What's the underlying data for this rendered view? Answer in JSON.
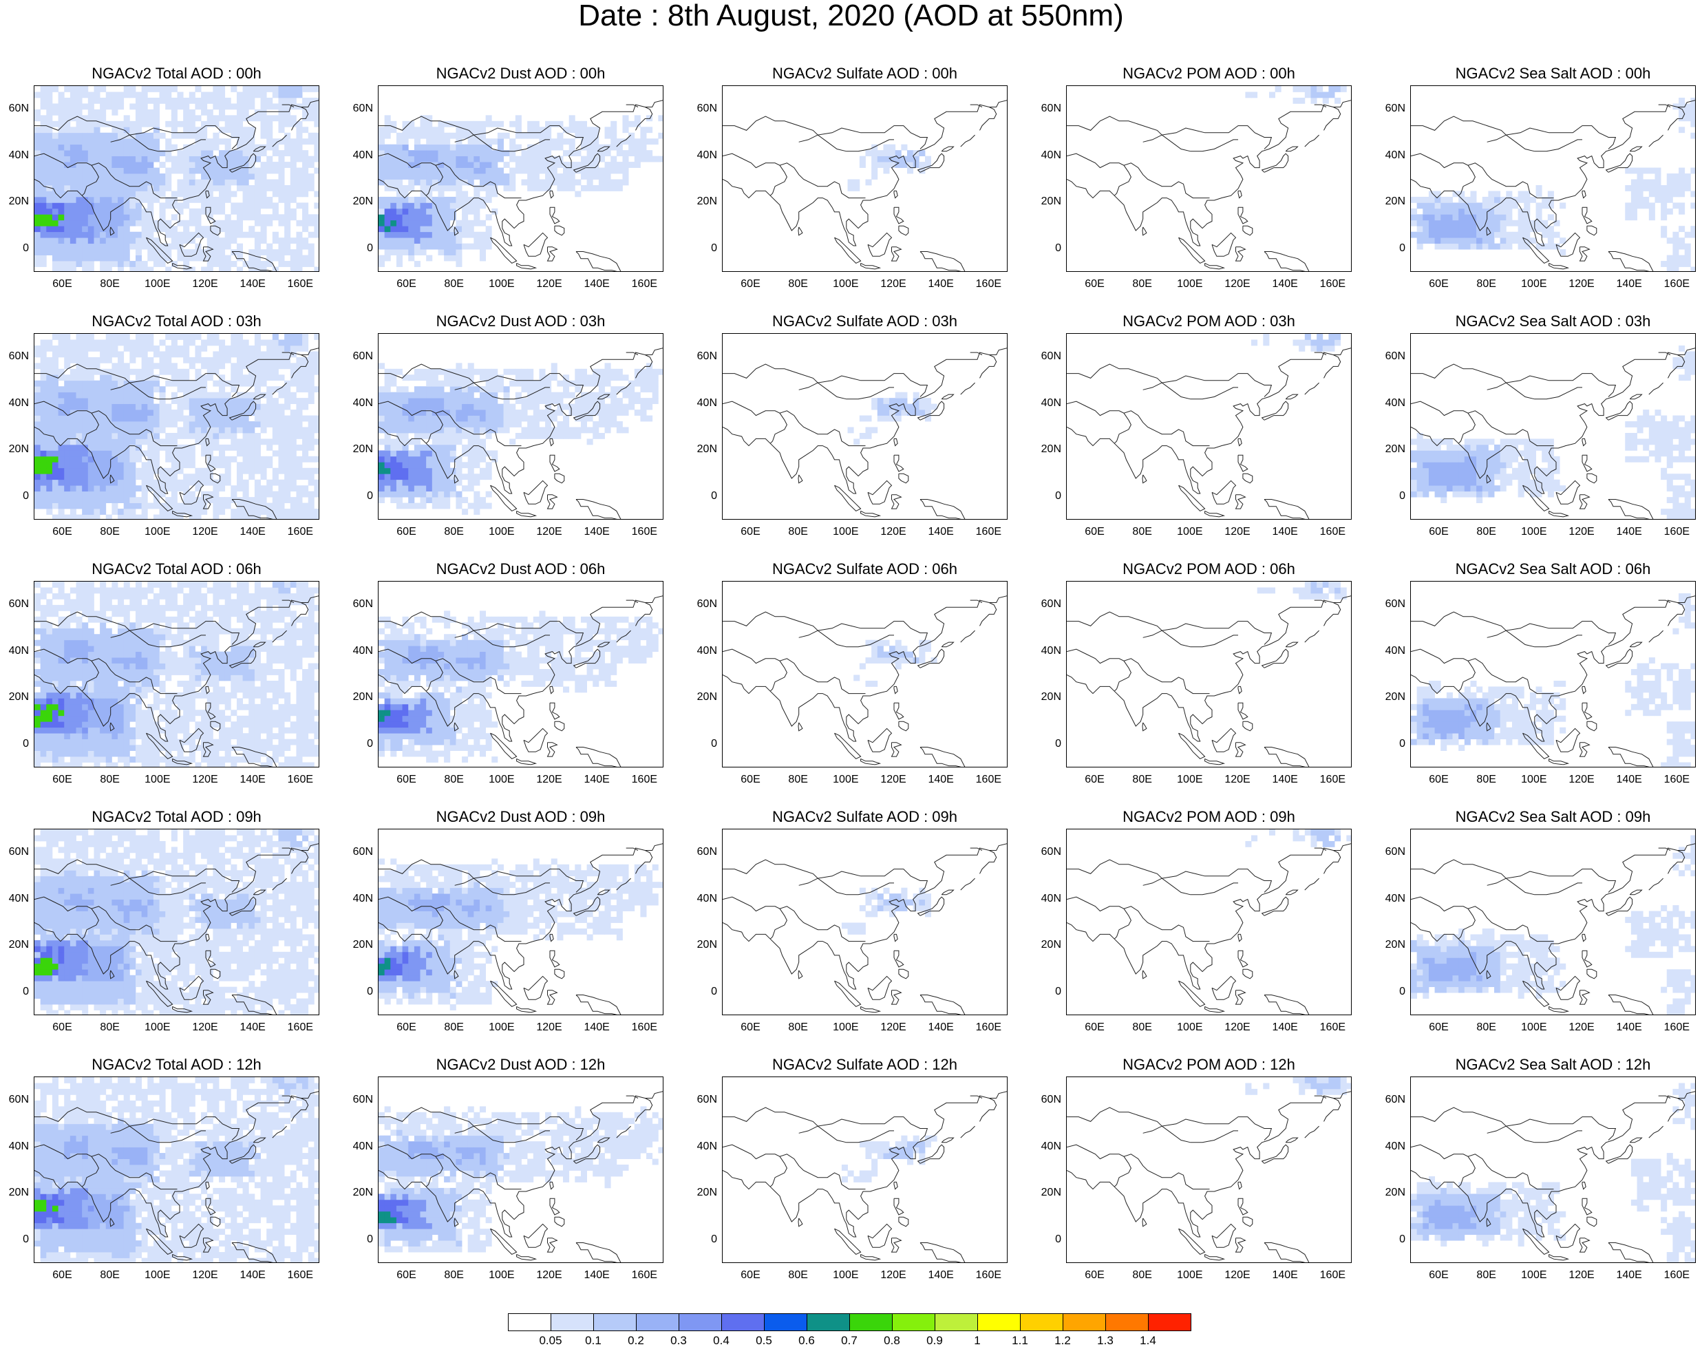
{
  "title": "Date : 8th August, 2020 (AOD at 550nm)",
  "panels": [
    {
      "title": "NGACv2 Total AOD : 00h",
      "field": "total"
    },
    {
      "title": "NGACv2 Dust AOD : 00h",
      "field": "dust"
    },
    {
      "title": "NGACv2 Sulfate AOD : 00h",
      "field": "sulfate"
    },
    {
      "title": "NGACv2 POM AOD : 00h",
      "field": "pom"
    },
    {
      "title": "NGACv2 Sea Salt AOD : 00h",
      "field": "seasalt"
    },
    {
      "title": "NGACv2 Total AOD : 03h",
      "field": "total"
    },
    {
      "title": "NGACv2 Dust AOD : 03h",
      "field": "dust"
    },
    {
      "title": "NGACv2 Sulfate AOD : 03h",
      "field": "sulfate"
    },
    {
      "title": "NGACv2 POM AOD : 03h",
      "field": "pom"
    },
    {
      "title": "NGACv2 Sea Salt AOD : 03h",
      "field": "seasalt"
    },
    {
      "title": "NGACv2 Total AOD : 06h",
      "field": "total"
    },
    {
      "title": "NGACv2 Dust AOD : 06h",
      "field": "dust"
    },
    {
      "title": "NGACv2 Sulfate AOD : 06h",
      "field": "sulfate"
    },
    {
      "title": "NGACv2 POM AOD : 06h",
      "field": "pom"
    },
    {
      "title": "NGACv2 Sea Salt AOD : 06h",
      "field": "seasalt"
    },
    {
      "title": "NGACv2 Total AOD : 09h",
      "field": "total"
    },
    {
      "title": "NGACv2 Dust AOD : 09h",
      "field": "dust"
    },
    {
      "title": "NGACv2 Sulfate AOD : 09h",
      "field": "sulfate"
    },
    {
      "title": "NGACv2 POM AOD : 09h",
      "field": "pom"
    },
    {
      "title": "NGACv2 Sea Salt  AOD : 09h",
      "field": "seasalt"
    },
    {
      "title": "NGACv2 Total AOD  : 12h",
      "field": "total"
    },
    {
      "title": "NGACv2 Dust AOD : 12h",
      "field": "dust"
    },
    {
      "title": "NGACv2 Sulfate AOD : 12h",
      "field": "sulfate"
    },
    {
      "title": "NGACv2 POM  AOD : 12h",
      "field": "pom"
    },
    {
      "title": "NGACv2 Sea Salt  AOD : 12h",
      "field": "seasalt"
    }
  ],
  "axes": {
    "lat_ticks": [
      "60N",
      "40N",
      "20N",
      "0"
    ],
    "lon_ticks": [
      "60E",
      "80E",
      "100E",
      "120E",
      "140E",
      "160E"
    ]
  },
  "colorbar": {
    "labels": [
      "0.05",
      "0.1",
      "0.2",
      "0.3",
      "0.4",
      "0.5",
      "0.6",
      "0.7",
      "0.8",
      "0.9",
      "1",
      "1.1",
      "1.2",
      "1.3",
      "1.4"
    ],
    "colors": [
      "#ffffff",
      "#d6e2fb",
      "#b6cbf9",
      "#99b2f6",
      "#7f97f3",
      "#5f6ff0",
      "#0a5ced",
      "#0f9187",
      "#3ad50a",
      "#85f00c",
      "#bef03a",
      "#ffff00",
      "#ffd000",
      "#ffa500",
      "#ff7800",
      "#ff2200"
    ]
  }
}
